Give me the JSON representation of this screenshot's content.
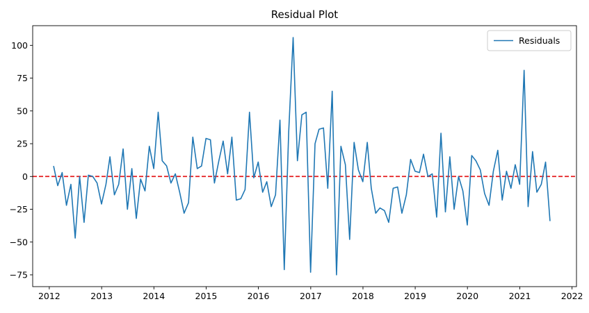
{
  "chart_data": {
    "type": "line",
    "title": "Residual Plot",
    "xlabel": "",
    "ylabel": "",
    "x_axis": {
      "type": "date",
      "lim": [
        "2011-09-07",
        "2022-02-01"
      ],
      "tick_labels": [
        "2012",
        "2013",
        "2014",
        "2015",
        "2016",
        "2017",
        "2018",
        "2019",
        "2020",
        "2021",
        "2022"
      ]
    },
    "y_axis": {
      "lim": [
        -84,
        115
      ],
      "ticks": [
        -75,
        -50,
        -25,
        0,
        25,
        50,
        75,
        100
      ],
      "tick_labels": [
        "−75",
        "−50",
        "−25",
        "0",
        "25",
        "50",
        "75",
        "100"
      ]
    },
    "grid": false,
    "legend": {
      "placement": "top-right",
      "entries": [
        "Residuals"
      ]
    },
    "reference_line": {
      "y": 0,
      "color": "#e41a1c",
      "style": "dashed"
    },
    "series": [
      {
        "name": "Residuals",
        "color": "#1f77b4",
        "points": [
          [
            "2012-01-31",
            8
          ],
          [
            "2012-02-29",
            -7
          ],
          [
            "2012-03-31",
            3
          ],
          [
            "2012-04-30",
            -22
          ],
          [
            "2012-05-31",
            -6
          ],
          [
            "2012-06-30",
            -47
          ],
          [
            "2012-07-31",
            0
          ],
          [
            "2012-08-31",
            -35
          ],
          [
            "2012-09-30",
            1
          ],
          [
            "2012-10-31",
            0
          ],
          [
            "2012-11-30",
            -5
          ],
          [
            "2012-12-31",
            -21
          ],
          [
            "2013-01-31",
            -6
          ],
          [
            "2013-02-28",
            15
          ],
          [
            "2013-03-31",
            -14
          ],
          [
            "2013-04-30",
            -6
          ],
          [
            "2013-05-31",
            21
          ],
          [
            "2013-06-30",
            -25
          ],
          [
            "2013-07-31",
            6
          ],
          [
            "2013-08-31",
            -32
          ],
          [
            "2013-09-30",
            -2
          ],
          [
            "2013-10-31",
            -11
          ],
          [
            "2013-11-30",
            23
          ],
          [
            "2013-12-31",
            6
          ],
          [
            "2014-01-31",
            49
          ],
          [
            "2014-02-28",
            12
          ],
          [
            "2014-03-31",
            8
          ],
          [
            "2014-04-30",
            -5
          ],
          [
            "2014-05-31",
            2
          ],
          [
            "2014-06-30",
            -12
          ],
          [
            "2014-07-31",
            -28
          ],
          [
            "2014-08-31",
            -20
          ],
          [
            "2014-09-30",
            30
          ],
          [
            "2014-10-31",
            6
          ],
          [
            "2014-11-30",
            8
          ],
          [
            "2014-12-31",
            29
          ],
          [
            "2015-01-31",
            28
          ],
          [
            "2015-02-28",
            -5
          ],
          [
            "2015-03-31",
            12
          ],
          [
            "2015-04-30",
            27
          ],
          [
            "2015-05-31",
            2
          ],
          [
            "2015-06-30",
            30
          ],
          [
            "2015-07-31",
            -18
          ],
          [
            "2015-08-31",
            -17
          ],
          [
            "2015-09-30",
            -10
          ],
          [
            "2015-10-31",
            49
          ],
          [
            "2015-11-30",
            -1
          ],
          [
            "2015-12-31",
            11
          ],
          [
            "2016-01-31",
            -12
          ],
          [
            "2016-02-29",
            -4
          ],
          [
            "2016-03-31",
            -23
          ],
          [
            "2016-04-30",
            -14
          ],
          [
            "2016-05-31",
            43
          ],
          [
            "2016-06-30",
            -71
          ],
          [
            "2016-07-31",
            34
          ],
          [
            "2016-08-31",
            106
          ],
          [
            "2016-09-30",
            12
          ],
          [
            "2016-10-31",
            47
          ],
          [
            "2016-11-30",
            49
          ],
          [
            "2016-12-31",
            -73
          ],
          [
            "2017-01-31",
            25
          ],
          [
            "2017-02-28",
            36
          ],
          [
            "2017-03-31",
            37
          ],
          [
            "2017-04-30",
            -9
          ],
          [
            "2017-05-31",
            65
          ],
          [
            "2017-06-30",
            -75
          ],
          [
            "2017-07-31",
            23
          ],
          [
            "2017-08-31",
            9
          ],
          [
            "2017-09-30",
            -48
          ],
          [
            "2017-10-31",
            26
          ],
          [
            "2017-11-30",
            5
          ],
          [
            "2017-12-31",
            -4
          ],
          [
            "2018-01-31",
            26
          ],
          [
            "2018-02-28",
            -9
          ],
          [
            "2018-03-31",
            -28
          ],
          [
            "2018-04-30",
            -24
          ],
          [
            "2018-05-31",
            -26
          ],
          [
            "2018-06-30",
            -35
          ],
          [
            "2018-07-31",
            -9
          ],
          [
            "2018-08-31",
            -8
          ],
          [
            "2018-09-30",
            -28
          ],
          [
            "2018-10-31",
            -14
          ],
          [
            "2018-11-30",
            13
          ],
          [
            "2018-12-31",
            4
          ],
          [
            "2019-01-31",
            3
          ],
          [
            "2019-02-28",
            17
          ],
          [
            "2019-03-31",
            0
          ],
          [
            "2019-04-30",
            2
          ],
          [
            "2019-05-31",
            -31
          ],
          [
            "2019-06-30",
            33
          ],
          [
            "2019-07-31",
            -27
          ],
          [
            "2019-08-31",
            15
          ],
          [
            "2019-09-30",
            -25
          ],
          [
            "2019-10-31",
            0
          ],
          [
            "2019-11-30",
            -11
          ],
          [
            "2019-12-31",
            -37
          ],
          [
            "2020-01-31",
            16
          ],
          [
            "2020-02-29",
            12
          ],
          [
            "2020-03-31",
            5
          ],
          [
            "2020-04-30",
            -13
          ],
          [
            "2020-05-31",
            -22
          ],
          [
            "2020-06-30",
            4
          ],
          [
            "2020-07-31",
            20
          ],
          [
            "2020-08-31",
            -18
          ],
          [
            "2020-09-30",
            4
          ],
          [
            "2020-10-31",
            -9
          ],
          [
            "2020-11-30",
            9
          ],
          [
            "2020-12-31",
            -6
          ],
          [
            "2021-01-31",
            81
          ],
          [
            "2021-02-28",
            -23
          ],
          [
            "2021-03-31",
            19
          ],
          [
            "2021-04-30",
            -12
          ],
          [
            "2021-05-31",
            -6
          ],
          [
            "2021-06-30",
            11
          ],
          [
            "2021-07-31",
            -34
          ]
        ]
      }
    ]
  }
}
